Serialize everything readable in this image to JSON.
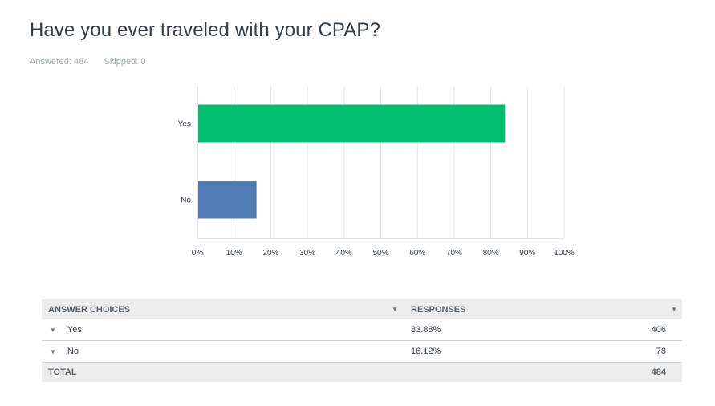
{
  "question": {
    "title": "Have you ever traveled with your CPAP?",
    "answered": "Answered: 484",
    "skipped": "Skipped: 0"
  },
  "colors": {
    "yes_bar": "#00bf6f",
    "no_bar": "#507cb6",
    "grid": "#e3e5e7",
    "axis": "#c4c9cc"
  },
  "chart_data": {
    "type": "bar",
    "orientation": "horizontal",
    "categories": [
      "Yes",
      "No"
    ],
    "values": [
      83.88,
      16.12
    ],
    "xlim": [
      0,
      100
    ],
    "xticks": [
      "0%",
      "10%",
      "20%",
      "30%",
      "40%",
      "50%",
      "60%",
      "70%",
      "80%",
      "90%",
      "100%"
    ],
    "title": "Have you ever traveled with your CPAP?",
    "xlabel": "",
    "ylabel": "",
    "grid": true
  },
  "table": {
    "header_choices": "ANSWER CHOICES",
    "header_responses": "RESPONSES",
    "caret_icon": "▼",
    "rows": [
      {
        "choice": "Yes",
        "percent": "83.88%",
        "count": "406"
      },
      {
        "choice": "No",
        "percent": "16.12%",
        "count": "78"
      }
    ],
    "total_label": "TOTAL",
    "total_count": "484"
  }
}
